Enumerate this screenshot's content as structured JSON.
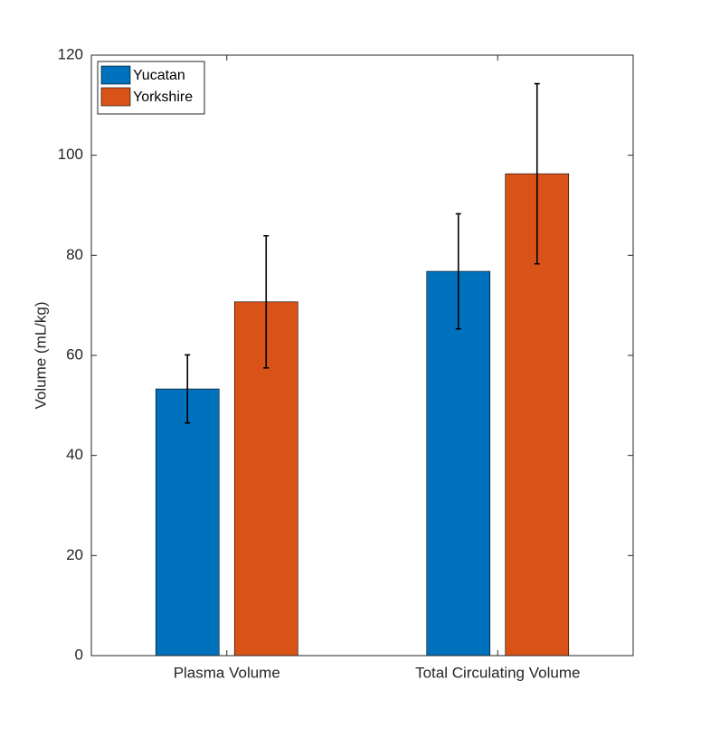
{
  "chart_data": {
    "type": "bar",
    "y_label": "Volume (mL/kg)",
    "categories": [
      "Plasma Volume",
      "Total Circulating Volume"
    ],
    "series": [
      {
        "name": "Yucatan",
        "color": "#0072bd",
        "values": [
          53.3,
          76.8
        ],
        "errors": [
          6.8,
          11.5
        ]
      },
      {
        "name": "Yorkshire",
        "color": "#d95319",
        "values": [
          70.7,
          96.3
        ],
        "errors": [
          13.2,
          18.0
        ]
      }
    ],
    "ylim": [
      0,
      120
    ],
    "yticks": [
      0,
      20,
      40,
      60,
      80,
      100,
      120
    ],
    "legend": "upper-left"
  }
}
